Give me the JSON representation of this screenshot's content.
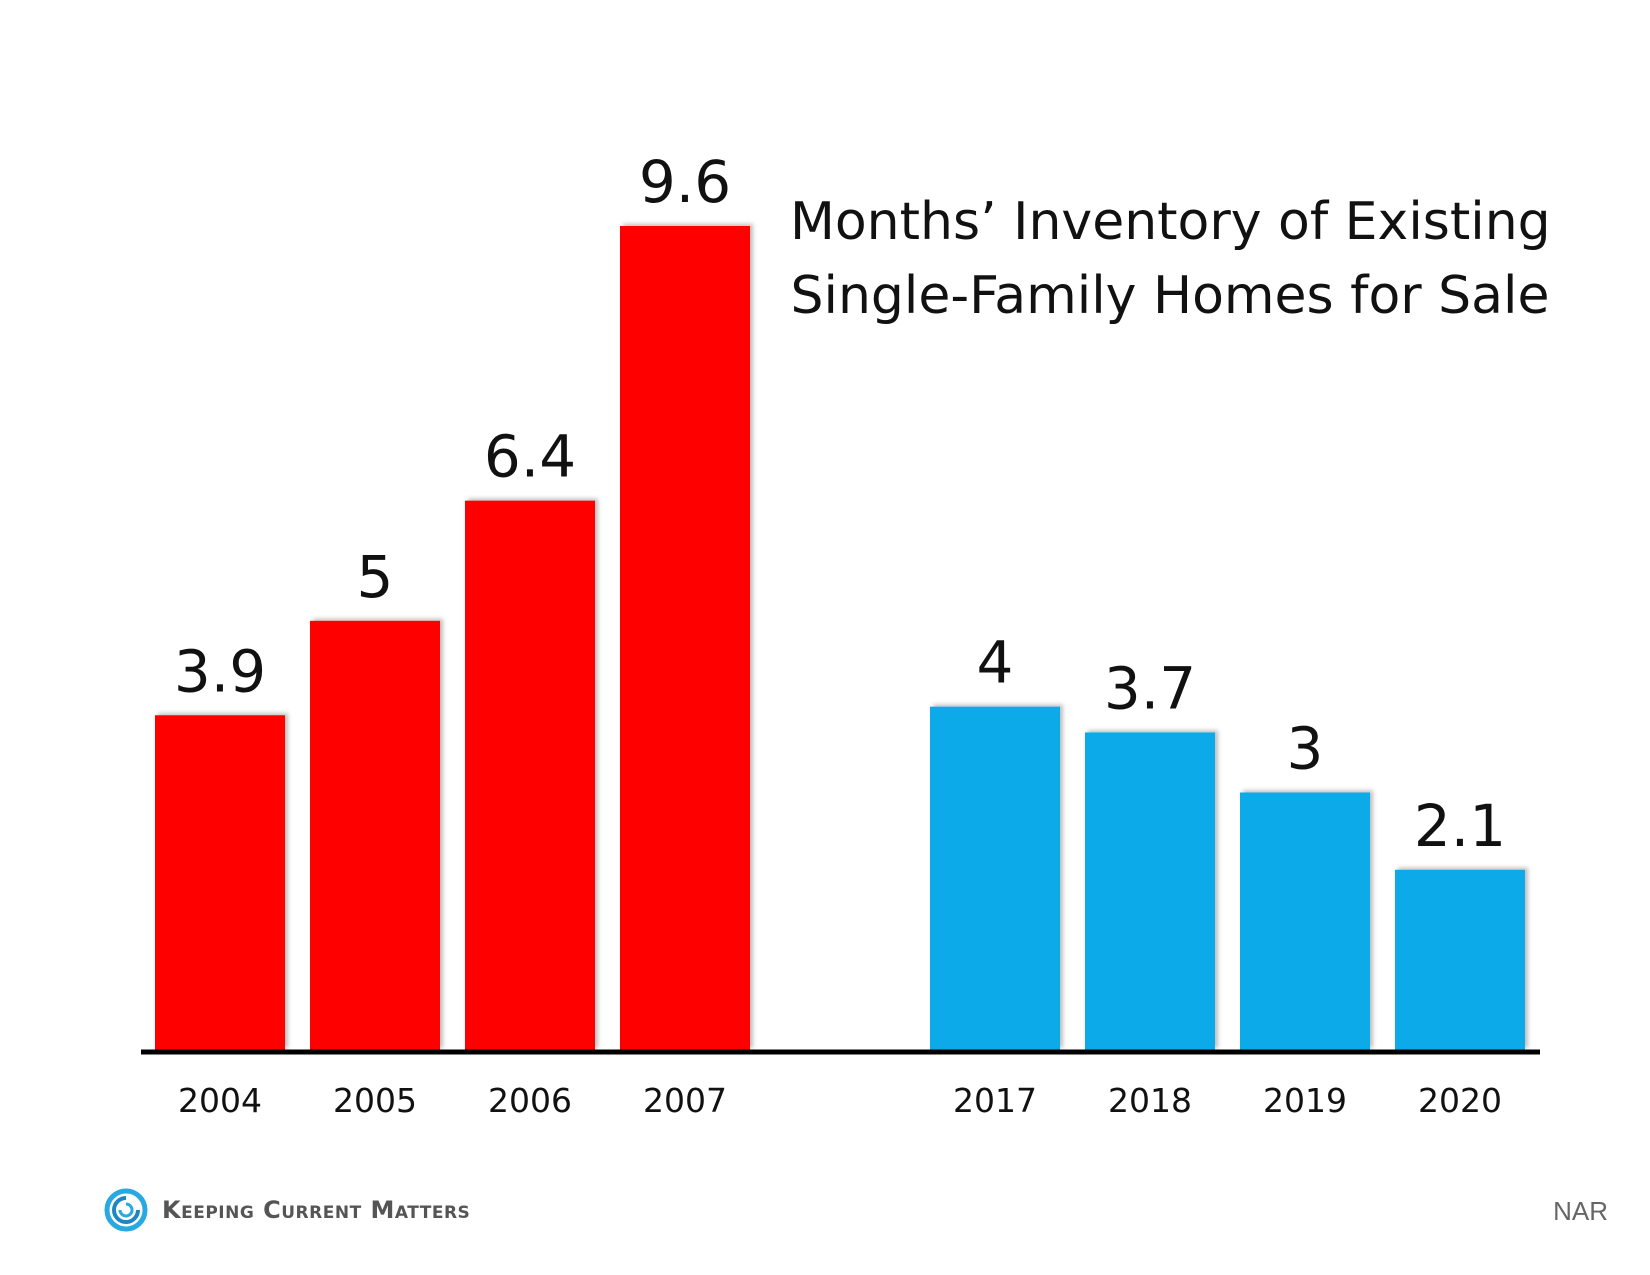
{
  "chart_data": {
    "type": "bar",
    "title": "Months’ Inventory of Existing Single-Family Homes for Sale",
    "title_lines": [
      "Months’ Inventory of Existing",
      "Single-Family Homes for Sale"
    ],
    "categories": [
      "2004",
      "2005",
      "2006",
      "2007",
      "2017",
      "2018",
      "2019",
      "2020"
    ],
    "values": [
      3.9,
      5,
      6.4,
      9.6,
      4,
      3.7,
      3,
      2.1
    ],
    "value_labels": [
      "3.9",
      "5",
      "6.4",
      "9.6",
      "4",
      "3.7",
      "3",
      "2.1"
    ],
    "groups": [
      {
        "categories": [
          "2004",
          "2005",
          "2006",
          "2007"
        ],
        "color": "#fe0000"
      },
      {
        "categories": [
          "2017",
          "2018",
          "2019",
          "2020"
        ],
        "color": "#0eaaea"
      }
    ],
    "ylim": [
      0,
      9.6
    ],
    "grid": false,
    "xlabel": "",
    "ylabel": ""
  },
  "footer": {
    "logo_text": "Keeping Current Matters",
    "logo_icon": "swirl-logo-icon",
    "source": "NAR"
  },
  "colors": {
    "red": "#fe0000",
    "blue": "#0eaaea",
    "axis": "#000000"
  }
}
